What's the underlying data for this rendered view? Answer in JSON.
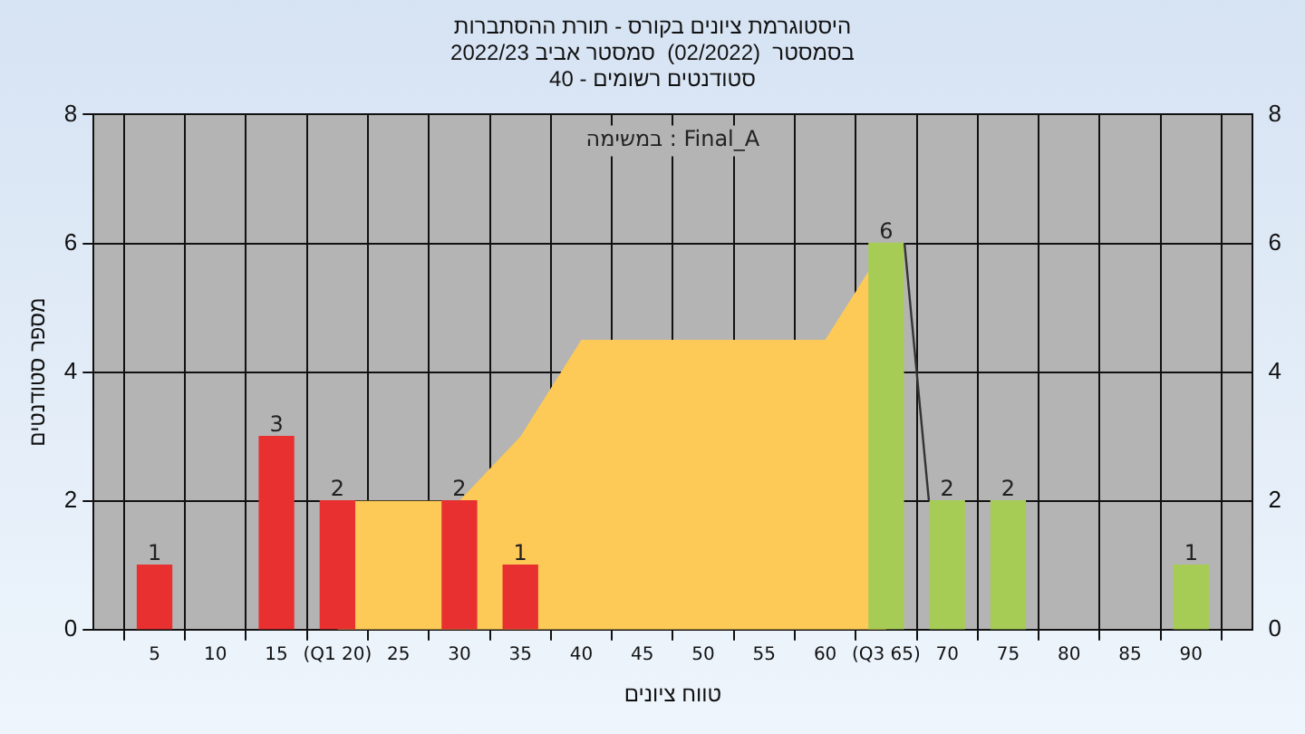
{
  "chart_data": {
    "type": "bar",
    "title": "היסטוגרמת ציונים בקורס - תורת ההסתברות",
    "subtitle": "בסמסטר  (02/2022)  סמסטר אביב 2022/23\nסטודנטים רשומים - 40",
    "xlabel": "טווח ציונים",
    "ylabel": "מספר סטודנטים",
    "annotations": [
      "במשימה : Final_A"
    ],
    "xlim": [
      0,
      95
    ],
    "xticks": [
      5,
      10,
      15,
      {
        "value": 20,
        "label": "(Q1 20)"
      },
      25,
      30,
      35,
      40,
      45,
      50,
      55,
      60,
      {
        "value": 65,
        "label": "(Q3 65)"
      },
      70,
      75,
      80,
      85,
      90
    ],
    "ylim": [
      0,
      8
    ],
    "yticks": [
      0,
      2,
      4,
      6,
      8
    ],
    "y2lim": [
      0,
      8
    ],
    "y2ticks": [
      0,
      2,
      4,
      6,
      8
    ],
    "grid": true,
    "legend": false,
    "series": [
      {
        "type": "area",
        "color": "#fdc957",
        "x": [
          20,
          30,
          35,
          40,
          60,
          65
        ],
        "values": [
          2,
          2,
          3,
          4.5,
          4.5,
          6
        ]
      },
      {
        "color": "#e83030",
        "x": [
          5,
          15,
          20,
          30,
          35
        ],
        "values": [
          1,
          3,
          2,
          2,
          1
        ],
        "value_labels": [
          "1",
          "3",
          "2",
          "2",
          "1"
        ]
      },
      {
        "color": "#a6cc55",
        "x": [
          65,
          70,
          75,
          90
        ],
        "values": [
          6,
          2,
          2,
          1
        ],
        "value_labels": [
          "6",
          "2",
          "2",
          "1"
        ]
      },
      {
        "type": "line",
        "color": "#333333",
        "x": [
          66.5,
          68.5
        ],
        "values": [
          6,
          2
        ]
      }
    ]
  }
}
